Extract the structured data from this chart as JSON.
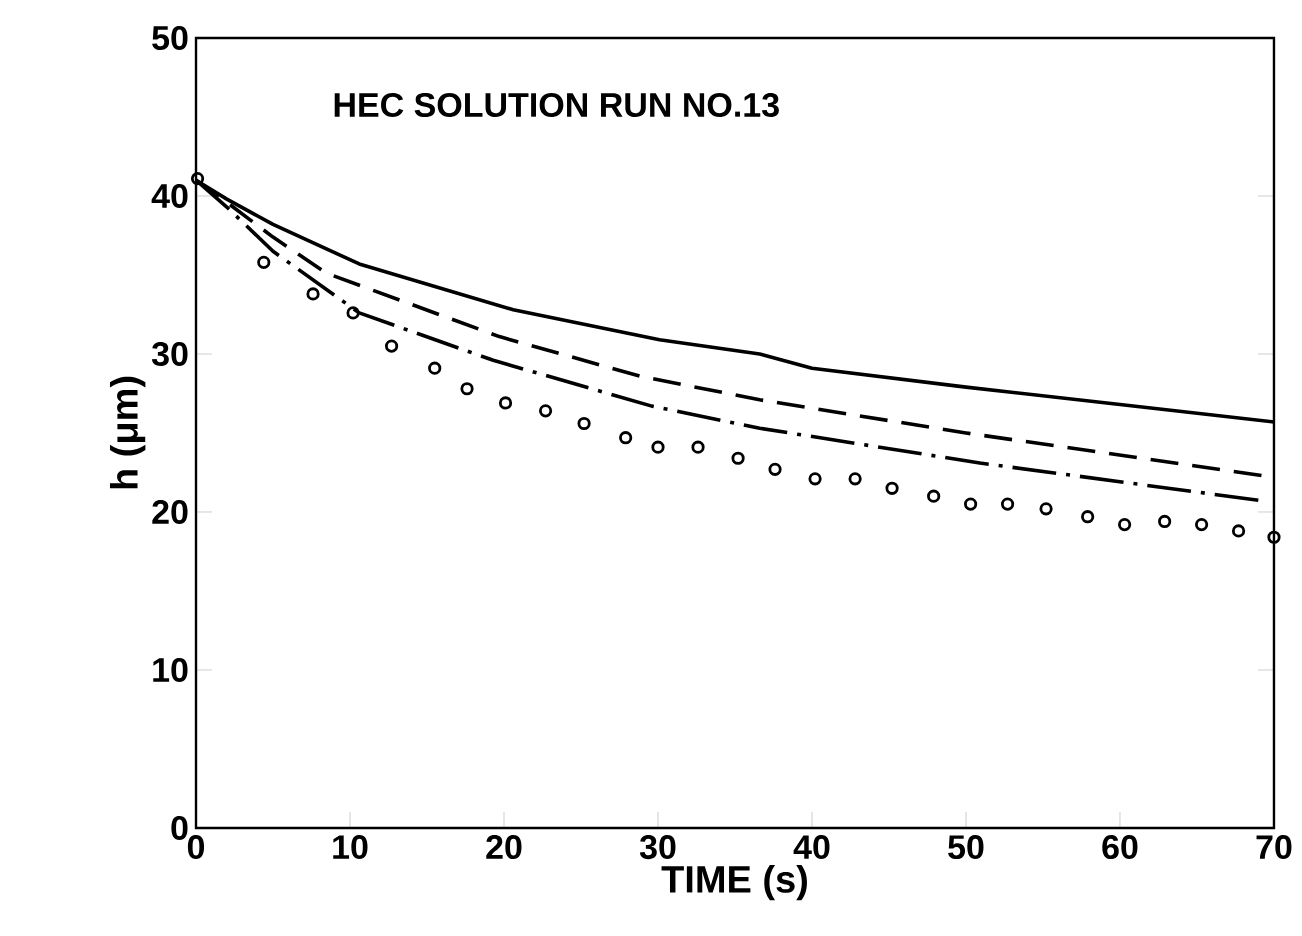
{
  "chart_data": {
    "type": "line",
    "title": "HEC SOLUTION RUN NO.13",
    "xlabel": "TIME (s)",
    "ylabel": "h (μm)",
    "xlim": [
      0,
      70
    ],
    "ylim": [
      0,
      50
    ],
    "xticks": [
      0,
      10,
      20,
      30,
      40,
      50,
      60,
      70
    ],
    "yticks": [
      0,
      10,
      20,
      30,
      40,
      50
    ],
    "series": [
      {
        "line_style": "solid",
        "color": "#000000",
        "x": [
          0,
          2,
          5,
          10.6,
          20.6,
          30.1,
          36.6,
          40,
          50,
          60,
          70
        ],
        "values": [
          41,
          39.8,
          38.2,
          35.7,
          32.8,
          30.9,
          30.0,
          29.1,
          27.9,
          26.8,
          25.7
        ]
      },
      {
        "line_style": "dashed",
        "color": "#000000",
        "x": [
          0,
          2,
          5,
          8.5,
          19.7,
          28.8,
          36.6,
          50,
          60,
          70
        ],
        "values": [
          41,
          39.6,
          37.4,
          35.1,
          31.1,
          28.6,
          27.1,
          25.0,
          23.6,
          22.2
        ]
      },
      {
        "line_style": "dashdot",
        "color": "#000000",
        "x": [
          0,
          2,
          5,
          10.6,
          19.3,
          29.6,
          36.6,
          50.9,
          69.3
        ],
        "values": [
          41,
          39.3,
          36.5,
          32.6,
          29.6,
          26.7,
          25.3,
          23.1,
          20.7
        ]
      },
      {
        "type": "scatter",
        "marker": "circle",
        "color": "#000000",
        "x": [
          0.1,
          4.4,
          7.6,
          10.2,
          12.7,
          15.5,
          17.6,
          20.1,
          22.7,
          25.2,
          27.9,
          30.0,
          32.6,
          35.2,
          37.6,
          40.2,
          42.8,
          45.2,
          47.9,
          50.3,
          52.7,
          55.2,
          57.9,
          60.3,
          62.9,
          65.3,
          67.7,
          70
        ],
        "values": [
          41.1,
          35.8,
          33.8,
          32.6,
          30.5,
          29.1,
          27.8,
          26.9,
          26.4,
          25.6,
          24.7,
          24.1,
          24.1,
          23.4,
          22.7,
          22.1,
          22.1,
          21.5,
          21.0,
          20.5,
          20.5,
          20.2,
          19.7,
          19.2,
          19.4,
          19.2,
          18.8,
          18.4
        ]
      }
    ]
  }
}
